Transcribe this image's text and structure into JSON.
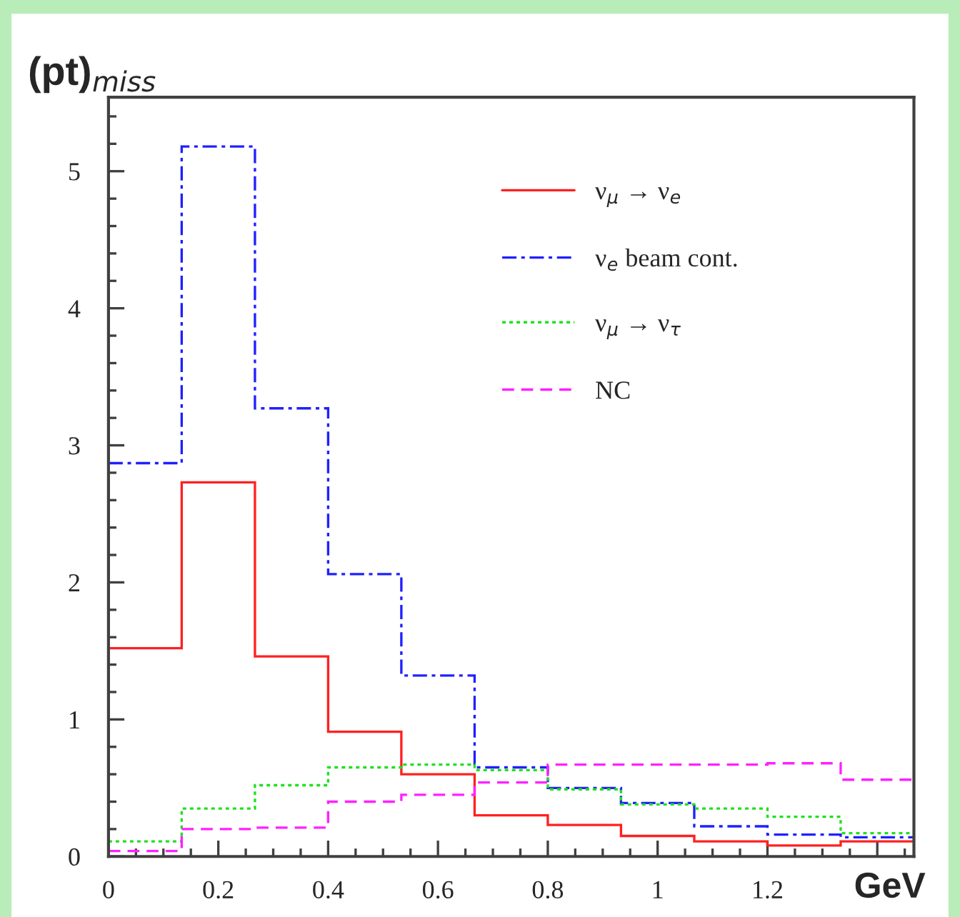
{
  "chart_data": {
    "type": "histogram",
    "xlabel": "GeV",
    "ylabel": "(pt)$_{miss}$",
    "bins": [
      0,
      0.1333,
      0.2667,
      0.4,
      0.5333,
      0.6667,
      0.8,
      0.9333,
      1.0667,
      1.2,
      1.3333,
      1.4667
    ],
    "series": [
      {
        "name": "ν$_{μ}$ → ν$_{e}$",
        "color": "#ff2020",
        "line_style": "solid",
        "values": [
          1.52,
          2.73,
          1.46,
          0.91,
          0.6,
          0.3,
          0.23,
          0.15,
          0.11,
          0.08,
          0.11
        ]
      },
      {
        "name": "ν$_{e}$ beam cont.",
        "color": "#2020ff",
        "line_style": "dashdot",
        "values": [
          2.87,
          5.18,
          3.27,
          2.06,
          1.32,
          0.65,
          0.5,
          0.39,
          0.22,
          0.16,
          0.14
        ]
      },
      {
        "name": "ν$_{μ}$ → ν$_{τ}$",
        "color": "#20e020",
        "line_style": "dotted",
        "values": [
          0.11,
          0.35,
          0.52,
          0.65,
          0.67,
          0.63,
          0.49,
          0.38,
          0.35,
          0.29,
          0.17
        ]
      },
      {
        "name": "NC",
        "color": "#ff20ff",
        "line_style": "dashed",
        "values": [
          0.04,
          0.2,
          0.21,
          0.4,
          0.45,
          0.54,
          0.67,
          0.67,
          0.67,
          0.68,
          0.56
        ]
      }
    ],
    "xlim": [
      0,
      1.4667
    ],
    "ylim": [
      0,
      5.54
    ],
    "xticks": [
      0,
      0.2,
      0.4,
      0.6,
      0.8,
      1,
      1.2,
      {
        "value": 1.4,
        "label": null
      }
    ],
    "yticks": [
      0,
      1,
      2,
      3,
      4,
      5
    ],
    "legend": "top right",
    "grid": false
  }
}
